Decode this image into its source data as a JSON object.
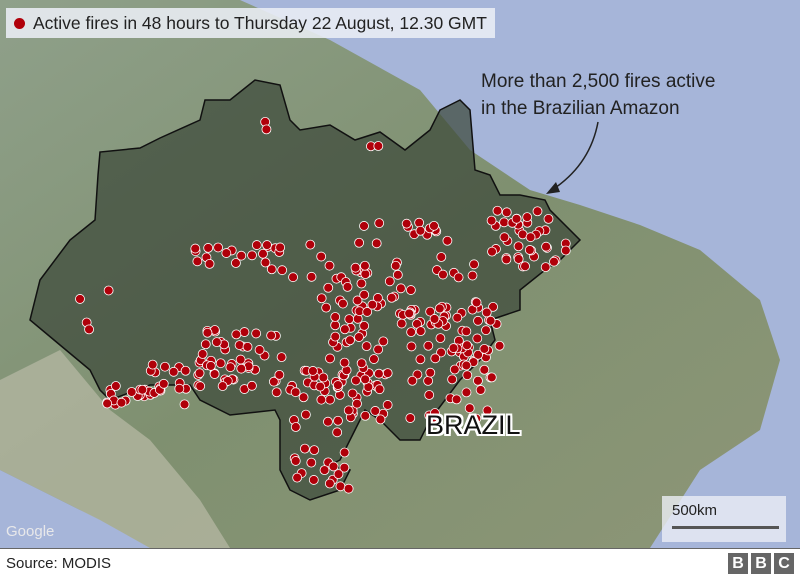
{
  "legend": {
    "label": "Active fires in 48 hours to Thursday 22 August, 12.30 GMT",
    "marker_color": "#b0000a"
  },
  "annotation": {
    "line1": "More than 2,500 fires active",
    "line2": "in the Brazilian Amazon"
  },
  "country_label": "BRAZIL",
  "map_attribution": "Google",
  "scale_bar": {
    "label": "500km"
  },
  "footer": {
    "source": "Source: MODIS",
    "logo_letters": [
      "B",
      "B",
      "C"
    ]
  },
  "colors": {
    "water": "#a6b5d9",
    "land": "#8c9b7e",
    "amazon_overlay": "#3d4a3a",
    "fire": "#b0000a"
  }
}
